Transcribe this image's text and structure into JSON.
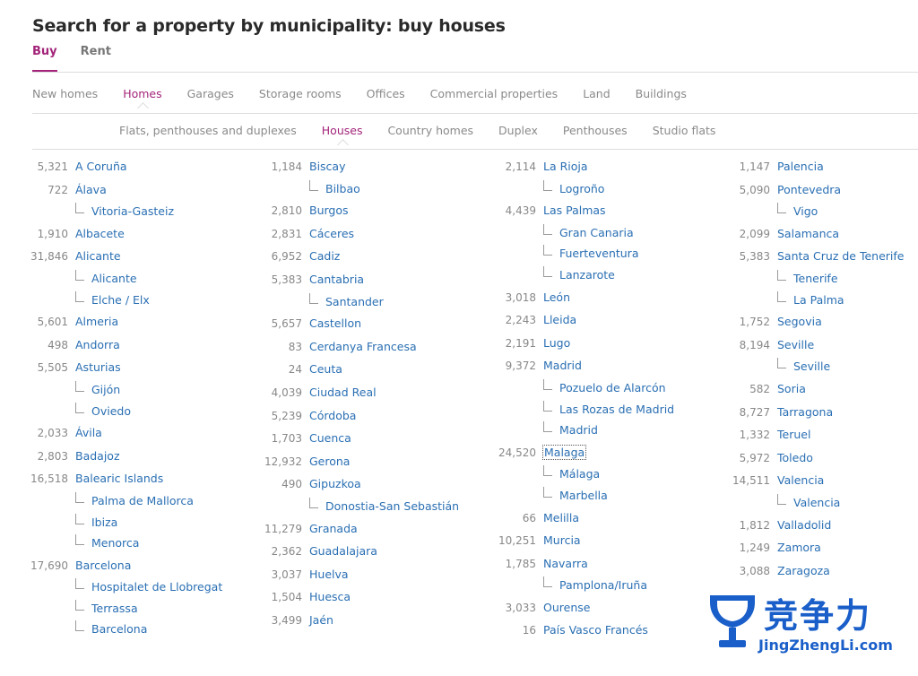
{
  "page": {
    "title": "Search for a property by municipality: buy houses"
  },
  "tabs": [
    {
      "label": "Buy",
      "active": true
    },
    {
      "label": "Rent",
      "active": false
    }
  ],
  "categories": [
    {
      "label": "New homes"
    },
    {
      "label": "Homes",
      "active": true
    },
    {
      "label": "Garages"
    },
    {
      "label": "Storage rooms"
    },
    {
      "label": "Offices"
    },
    {
      "label": "Commercial properties"
    },
    {
      "label": "Land"
    },
    {
      "label": "Buildings"
    }
  ],
  "subcategories": [
    {
      "label": "Flats, penthouses and duplexes"
    },
    {
      "label": "Houses",
      "active": true
    },
    {
      "label": "Country homes"
    },
    {
      "label": "Duplex"
    },
    {
      "label": "Penthouses"
    },
    {
      "label": "Studio flats"
    }
  ],
  "columns": [
    [
      {
        "count": "5,321",
        "name": "A Coruña"
      },
      {
        "count": "722",
        "name": "Álava"
      },
      {
        "sub": true,
        "name": "Vitoria-Gasteiz"
      },
      {
        "count": "1,910",
        "name": "Albacete"
      },
      {
        "count": "31,846",
        "name": "Alicante"
      },
      {
        "sub": true,
        "name": "Alicante"
      },
      {
        "sub": true,
        "name": "Elche / Elx"
      },
      {
        "count": "5,601",
        "name": "Almeria"
      },
      {
        "count": "498",
        "name": "Andorra"
      },
      {
        "count": "5,505",
        "name": "Asturias"
      },
      {
        "sub": true,
        "name": "Gijón"
      },
      {
        "sub": true,
        "name": "Oviedo"
      },
      {
        "count": "2,033",
        "name": "Ávila"
      },
      {
        "count": "2,803",
        "name": "Badajoz"
      },
      {
        "count": "16,518",
        "name": "Balearic Islands"
      },
      {
        "sub": true,
        "name": "Palma de Mallorca"
      },
      {
        "sub": true,
        "name": "Ibiza"
      },
      {
        "sub": true,
        "name": "Menorca"
      },
      {
        "count": "17,690",
        "name": "Barcelona"
      },
      {
        "sub": true,
        "name": "Hospitalet de Llobregat"
      },
      {
        "sub": true,
        "name": "Terrassa"
      },
      {
        "sub": true,
        "name": "Barcelona"
      }
    ],
    [
      {
        "count": "1,184",
        "name": "Biscay"
      },
      {
        "sub": true,
        "name": "Bilbao"
      },
      {
        "count": "2,810",
        "name": "Burgos"
      },
      {
        "count": "2,831",
        "name": "Cáceres"
      },
      {
        "count": "6,952",
        "name": "Cadiz"
      },
      {
        "count": "5,383",
        "name": "Cantabria"
      },
      {
        "sub": true,
        "name": "Santander"
      },
      {
        "count": "5,657",
        "name": "Castellon"
      },
      {
        "count": "83",
        "name": "Cerdanya Francesa"
      },
      {
        "count": "24",
        "name": "Ceuta"
      },
      {
        "count": "4,039",
        "name": "Ciudad Real"
      },
      {
        "count": "5,239",
        "name": "Córdoba"
      },
      {
        "count": "1,703",
        "name": "Cuenca"
      },
      {
        "count": "12,932",
        "name": "Gerona"
      },
      {
        "count": "490",
        "name": "Gipuzkoa"
      },
      {
        "sub": true,
        "name": "Donostia-San Sebastián"
      },
      {
        "count": "11,279",
        "name": "Granada"
      },
      {
        "count": "2,362",
        "name": "Guadalajara"
      },
      {
        "count": "3,037",
        "name": "Huelva"
      },
      {
        "count": "1,504",
        "name": "Huesca"
      },
      {
        "count": "3,499",
        "name": "Jaén"
      }
    ],
    [
      {
        "count": "2,114",
        "name": "La Rioja"
      },
      {
        "sub": true,
        "name": "Logroño"
      },
      {
        "count": "4,439",
        "name": "Las Palmas"
      },
      {
        "sub": true,
        "name": "Gran Canaria"
      },
      {
        "sub": true,
        "name": "Fuerteventura"
      },
      {
        "sub": true,
        "name": "Lanzarote"
      },
      {
        "count": "3,018",
        "name": "León"
      },
      {
        "count": "2,243",
        "name": "Lleida"
      },
      {
        "count": "2,191",
        "name": "Lugo"
      },
      {
        "count": "9,372",
        "name": "Madrid"
      },
      {
        "sub": true,
        "name": "Pozuelo de Alarcón"
      },
      {
        "sub": true,
        "name": "Las Rozas de Madrid"
      },
      {
        "sub": true,
        "name": "Madrid"
      },
      {
        "count": "24,520",
        "name": "Malaga",
        "focused": true
      },
      {
        "sub": true,
        "name": "Málaga"
      },
      {
        "sub": true,
        "name": "Marbella"
      },
      {
        "count": "66",
        "name": "Melilla"
      },
      {
        "count": "10,251",
        "name": "Murcia"
      },
      {
        "count": "1,785",
        "name": "Navarra"
      },
      {
        "sub": true,
        "name": "Pamplona/Iruña"
      },
      {
        "count": "3,033",
        "name": "Ourense"
      },
      {
        "count": "16",
        "name": "País Vasco Francés"
      }
    ],
    [
      {
        "count": "1,147",
        "name": "Palencia"
      },
      {
        "count": "5,090",
        "name": "Pontevedra"
      },
      {
        "sub": true,
        "name": "Vigo"
      },
      {
        "count": "2,099",
        "name": "Salamanca"
      },
      {
        "count": "5,383",
        "name": "Santa Cruz de Tenerife"
      },
      {
        "sub": true,
        "name": "Tenerife"
      },
      {
        "sub": true,
        "name": "La Palma"
      },
      {
        "count": "1,752",
        "name": "Segovia"
      },
      {
        "count": "8,194",
        "name": "Seville"
      },
      {
        "sub": true,
        "name": "Seville"
      },
      {
        "count": "582",
        "name": "Soria"
      },
      {
        "count": "8,727",
        "name": "Tarragona"
      },
      {
        "count": "1,332",
        "name": "Teruel"
      },
      {
        "count": "5,972",
        "name": "Toledo"
      },
      {
        "count": "14,511",
        "name": "Valencia"
      },
      {
        "sub": true,
        "name": "Valencia"
      },
      {
        "count": "1,812",
        "name": "Valladolid"
      },
      {
        "count": "1,249",
        "name": "Zamora"
      },
      {
        "count": "3,088",
        "name": "Zaragoza"
      }
    ]
  ],
  "watermark": {
    "text_cn": "竞争力",
    "text_en": "JingZhengLi.com",
    "color": "#1a5fc9",
    "icon": "trophy-icon"
  },
  "colors": {
    "accent": "#a3247a",
    "link": "#2a6fb3",
    "count": "#888888"
  }
}
